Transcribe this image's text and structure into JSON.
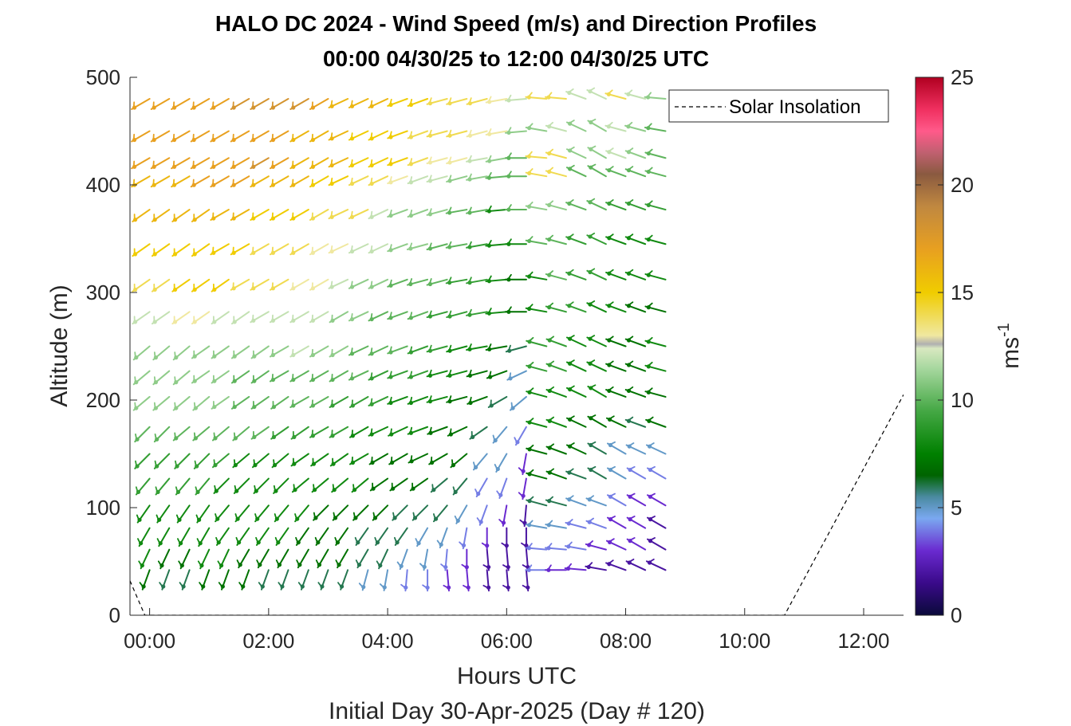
{
  "chart_data": {
    "type": "wind-barb-profile",
    "title_line1": "HALO DC 2024 - Wind Speed (m/s) and Direction Profiles",
    "title_line2": "00:00 04/30/25 to 12:00 04/30/25  UTC",
    "xlabel": "Hours UTC",
    "xlabel2": "Initial Day 30-Apr-2025 (Day # 120)",
    "ylabel": "Altitude (m)",
    "xlim_hours": [
      -0.33,
      12.67
    ],
    "ylim": [
      0,
      500
    ],
    "x_ticks": [
      {
        "value": 0,
        "label": "00:00"
      },
      {
        "value": 2,
        "label": "02:00"
      },
      {
        "value": 4,
        "label": "04:00"
      },
      {
        "value": 6,
        "label": "06:00"
      },
      {
        "value": 8,
        "label": "08:00"
      },
      {
        "value": 10,
        "label": "10:00"
      },
      {
        "value": 12,
        "label": "12:00"
      }
    ],
    "y_ticks": [
      {
        "value": 0,
        "label": "0"
      },
      {
        "value": 100,
        "label": "100"
      },
      {
        "value": 200,
        "label": "200"
      },
      {
        "value": 300,
        "label": "300"
      },
      {
        "value": 400,
        "label": "400"
      },
      {
        "value": 500,
        "label": "500"
      }
    ],
    "colorbar": {
      "range": [
        0,
        25
      ],
      "ticks": [
        {
          "value": 0,
          "label": "0"
        },
        {
          "value": 5,
          "label": "5"
        },
        {
          "value": 10,
          "label": "10"
        },
        {
          "value": 15,
          "label": "15"
        },
        {
          "value": 20,
          "label": "20"
        },
        {
          "value": 25,
          "label": "25"
        }
      ],
      "label_base": "ms",
      "label_exp": "-1",
      "stops": [
        {
          "v": 0,
          "c": "#0a0a3a"
        },
        {
          "v": 1.5,
          "c": "#3a0a8a"
        },
        {
          "v": 3,
          "c": "#6a2ad0"
        },
        {
          "v": 4.5,
          "c": "#7aa8f0"
        },
        {
          "v": 5.5,
          "c": "#4a8aa0"
        },
        {
          "v": 6.5,
          "c": "#006400"
        },
        {
          "v": 7.5,
          "c": "#008000"
        },
        {
          "v": 9.5,
          "c": "#45a845"
        },
        {
          "v": 11.5,
          "c": "#a8d8a0"
        },
        {
          "v": 12.4,
          "c": "#d8e8c0"
        },
        {
          "v": 12.6,
          "c": "#b0b0b0"
        },
        {
          "v": 13,
          "c": "#f0e8a0"
        },
        {
          "v": 15,
          "c": "#f0cc00"
        },
        {
          "v": 17,
          "c": "#e8a020"
        },
        {
          "v": 19,
          "c": "#c08840"
        },
        {
          "v": 20.5,
          "c": "#8a5a40"
        },
        {
          "v": 21.5,
          "c": "#c06070"
        },
        {
          "v": 22.5,
          "c": "#ff5a8a"
        },
        {
          "v": 23.5,
          "c": "#f03060"
        },
        {
          "v": 25,
          "c": "#b00020"
        }
      ]
    },
    "legend": {
      "label": "Solar Insolation",
      "placement": "top-right"
    },
    "solar_insolation_alt_equiv": [
      [
        -0.33,
        32
      ],
      [
        -0.08,
        0
      ],
      [
        10.67,
        0
      ],
      [
        12.67,
        205
      ]
    ],
    "barbs": {
      "times_hours": [
        0,
        0.33,
        0.67,
        1,
        1.33,
        1.67,
        2,
        2.33,
        2.67,
        3,
        3.33,
        3.67,
        4,
        4.33,
        4.67,
        5,
        5.33,
        5.67,
        6,
        6.33,
        6.67,
        7,
        7.33,
        7.67,
        8,
        8.33,
        8.67
      ],
      "altitudes_m": [
        480,
        450,
        425,
        408,
        377,
        345,
        312,
        282,
        250,
        227,
        203,
        175,
        150,
        127,
        102,
        81,
        61,
        42
      ],
      "speed_ms": [
        [
          17,
          17,
          17,
          17,
          17,
          18,
          18,
          18,
          18,
          17,
          16,
          16,
          16,
          15,
          15,
          14,
          14,
          14,
          13,
          12,
          14,
          14,
          12,
          12,
          14,
          12,
          11
        ],
        [
          17,
          17,
          17,
          17,
          17,
          17,
          17,
          17,
          16,
          16,
          16,
          15,
          15,
          15,
          14,
          14,
          14,
          13,
          13,
          11,
          11,
          12,
          11,
          11,
          12,
          11,
          10
        ],
        [
          17,
          17,
          17,
          17,
          17,
          17,
          18,
          17,
          16,
          16,
          16,
          15,
          15,
          15,
          14,
          13,
          13,
          12,
          11,
          10,
          14,
          14,
          11,
          11,
          12,
          11,
          10
        ],
        [
          16,
          16,
          16,
          17,
          17,
          17,
          16,
          16,
          16,
          15,
          15,
          14,
          14,
          13,
          12,
          12,
          11,
          11,
          10,
          10,
          14,
          14,
          10,
          10,
          10,
          10,
          10
        ],
        [
          16,
          16,
          16,
          16,
          16,
          16,
          15,
          15,
          15,
          14,
          14,
          14,
          12,
          11,
          11,
          11,
          10,
          10,
          8,
          10,
          11,
          11,
          10,
          10,
          9,
          9,
          9
        ],
        [
          15,
          15,
          15,
          15,
          15,
          15,
          14,
          14,
          14,
          13,
          13,
          12,
          12,
          11,
          11,
          10,
          10,
          9,
          8,
          8,
          10,
          10,
          9,
          9,
          8,
          8,
          8
        ],
        [
          14,
          14,
          15,
          15,
          15,
          14,
          14,
          14,
          13,
          13,
          12,
          11,
          11,
          10,
          10,
          10,
          9,
          9,
          8,
          7,
          8,
          10,
          9,
          9,
          8,
          8,
          8
        ],
        [
          12,
          12,
          13,
          13,
          12,
          12,
          12,
          12,
          12,
          12,
          11,
          11,
          10,
          10,
          10,
          9,
          9,
          9,
          8,
          7,
          8,
          9,
          9,
          8,
          8,
          7,
          7
        ],
        [
          11,
          11,
          11,
          11,
          11,
          11,
          11,
          11,
          12,
          11,
          11,
          10,
          10,
          10,
          9,
          9,
          8,
          8,
          7,
          6,
          9,
          9,
          8,
          8,
          7,
          7,
          8
        ],
        [
          11,
          11,
          11,
          11,
          11,
          10,
          10,
          10,
          10,
          10,
          10,
          10,
          9,
          9,
          9,
          8,
          8,
          7,
          7,
          5,
          9,
          9,
          8,
          8,
          7,
          7,
          8
        ],
        [
          11,
          11,
          11,
          11,
          11,
          10,
          10,
          10,
          10,
          10,
          9,
          9,
          9,
          8,
          8,
          8,
          7,
          7,
          6,
          5,
          8,
          8,
          8,
          8,
          7,
          7,
          7
        ],
        [
          10,
          10,
          10,
          10,
          10,
          10,
          10,
          9,
          9,
          9,
          9,
          8,
          8,
          8,
          8,
          7,
          7,
          6,
          5,
          4,
          8,
          8,
          7,
          7,
          7,
          6,
          7
        ],
        [
          9,
          9,
          9,
          9,
          9,
          8,
          8,
          8,
          8,
          8,
          8,
          8,
          7,
          7,
          7,
          7,
          7,
          5,
          5,
          3,
          7,
          7,
          7,
          6,
          5,
          5,
          5
        ],
        [
          9,
          9,
          9,
          9,
          8,
          8,
          8,
          8,
          8,
          8,
          8,
          8,
          7,
          7,
          7,
          6,
          6,
          4,
          4,
          3,
          7,
          7,
          6,
          6,
          5,
          4,
          4
        ],
        [
          8,
          8,
          8,
          8,
          8,
          8,
          8,
          8,
          8,
          7,
          7,
          7,
          7,
          6,
          6,
          6,
          5,
          4,
          3,
          2,
          6,
          6,
          5,
          5,
          4,
          3,
          3
        ],
        [
          8,
          8,
          8,
          8,
          8,
          8,
          8,
          8,
          7,
          7,
          7,
          6,
          6,
          6,
          5,
          5,
          4,
          3,
          2,
          2,
          5,
          5,
          4,
          4,
          3,
          3,
          2
        ],
        [
          8,
          7,
          7,
          8,
          8,
          7,
          7,
          7,
          7,
          7,
          7,
          6,
          6,
          5,
          5,
          4,
          3,
          2,
          2,
          2,
          4,
          4,
          4,
          3,
          3,
          3,
          2
        ],
        [
          7,
          6,
          6,
          7,
          7,
          7,
          6,
          6,
          6,
          6,
          6,
          5,
          5,
          4,
          4,
          3,
          3,
          2,
          2,
          2,
          4,
          3,
          3,
          2,
          2,
          2,
          2
        ]
      ],
      "direction_deg": [
        [
          240,
          240,
          240,
          240,
          240,
          240,
          240,
          240,
          240,
          240,
          245,
          245,
          245,
          250,
          250,
          255,
          255,
          255,
          260,
          265,
          275,
          275,
          290,
          295,
          285,
          285,
          275
        ],
        [
          240,
          240,
          240,
          240,
          240,
          240,
          240,
          240,
          240,
          240,
          245,
          245,
          245,
          250,
          250,
          255,
          255,
          255,
          260,
          265,
          280,
          285,
          295,
          300,
          285,
          285,
          280
        ],
        [
          240,
          240,
          240,
          240,
          240,
          240,
          240,
          240,
          240,
          240,
          245,
          245,
          245,
          250,
          250,
          255,
          255,
          260,
          260,
          270,
          275,
          285,
          295,
          300,
          290,
          290,
          285
        ],
        [
          240,
          240,
          240,
          240,
          240,
          240,
          240,
          240,
          240,
          240,
          245,
          245,
          245,
          250,
          250,
          255,
          255,
          260,
          265,
          270,
          280,
          285,
          295,
          300,
          290,
          290,
          285
        ],
        [
          235,
          235,
          235,
          235,
          240,
          240,
          240,
          240,
          240,
          240,
          245,
          245,
          245,
          250,
          250,
          255,
          260,
          260,
          265,
          270,
          280,
          285,
          290,
          295,
          290,
          290,
          285
        ],
        [
          235,
          235,
          235,
          235,
          240,
          240,
          240,
          240,
          240,
          240,
          245,
          245,
          245,
          250,
          255,
          255,
          260,
          260,
          265,
          270,
          280,
          285,
          290,
          295,
          290,
          290,
          285
        ],
        [
          235,
          235,
          235,
          235,
          235,
          240,
          240,
          240,
          240,
          240,
          245,
          245,
          245,
          250,
          255,
          255,
          260,
          260,
          265,
          270,
          280,
          285,
          290,
          295,
          290,
          290,
          285
        ],
        [
          235,
          235,
          235,
          235,
          235,
          235,
          240,
          240,
          240,
          240,
          240,
          245,
          245,
          250,
          250,
          255,
          255,
          260,
          265,
          270,
          280,
          285,
          290,
          295,
          290,
          290,
          285
        ],
        [
          230,
          230,
          230,
          235,
          235,
          235,
          235,
          240,
          240,
          240,
          240,
          245,
          245,
          250,
          250,
          255,
          255,
          260,
          260,
          255,
          285,
          290,
          295,
          295,
          290,
          290,
          285
        ],
        [
          230,
          230,
          230,
          235,
          235,
          235,
          235,
          240,
          240,
          240,
          240,
          245,
          245,
          250,
          250,
          255,
          255,
          255,
          250,
          245,
          285,
          290,
          295,
          295,
          290,
          290,
          285
        ],
        [
          230,
          230,
          230,
          230,
          235,
          235,
          235,
          235,
          240,
          240,
          240,
          240,
          245,
          250,
          250,
          255,
          255,
          250,
          240,
          230,
          285,
          290,
          295,
          300,
          290,
          290,
          285
        ],
        [
          225,
          225,
          230,
          230,
          230,
          230,
          235,
          235,
          235,
          240,
          240,
          240,
          245,
          245,
          250,
          250,
          245,
          235,
          220,
          210,
          285,
          290,
          295,
          300,
          295,
          290,
          290
        ],
        [
          225,
          225,
          225,
          225,
          230,
          230,
          230,
          230,
          235,
          235,
          235,
          240,
          240,
          240,
          245,
          240,
          230,
          220,
          210,
          190,
          285,
          290,
          295,
          300,
          300,
          295,
          295
        ],
        [
          220,
          220,
          220,
          220,
          225,
          225,
          225,
          225,
          230,
          230,
          230,
          230,
          235,
          235,
          235,
          230,
          220,
          210,
          200,
          190,
          285,
          290,
          290,
          300,
          300,
          300,
          300
        ],
        [
          215,
          215,
          215,
          215,
          220,
          220,
          220,
          220,
          220,
          225,
          225,
          225,
          225,
          225,
          225,
          220,
          210,
          200,
          190,
          185,
          285,
          285,
          290,
          290,
          300,
          300,
          300
        ],
        [
          210,
          210,
          210,
          210,
          215,
          215,
          215,
          215,
          215,
          215,
          215,
          215,
          215,
          215,
          210,
          200,
          190,
          180,
          180,
          180,
          280,
          280,
          285,
          290,
          300,
          300,
          300
        ],
        [
          205,
          205,
          205,
          205,
          205,
          210,
          210,
          210,
          210,
          210,
          210,
          210,
          205,
          200,
          190,
          185,
          180,
          175,
          175,
          175,
          275,
          275,
          280,
          285,
          295,
          300,
          300
        ],
        [
          200,
          200,
          200,
          200,
          200,
          200,
          200,
          200,
          200,
          200,
          200,
          195,
          190,
          185,
          180,
          175,
          175,
          175,
          175,
          175,
          270,
          270,
          275,
          280,
          290,
          295,
          295
        ]
      ]
    }
  }
}
